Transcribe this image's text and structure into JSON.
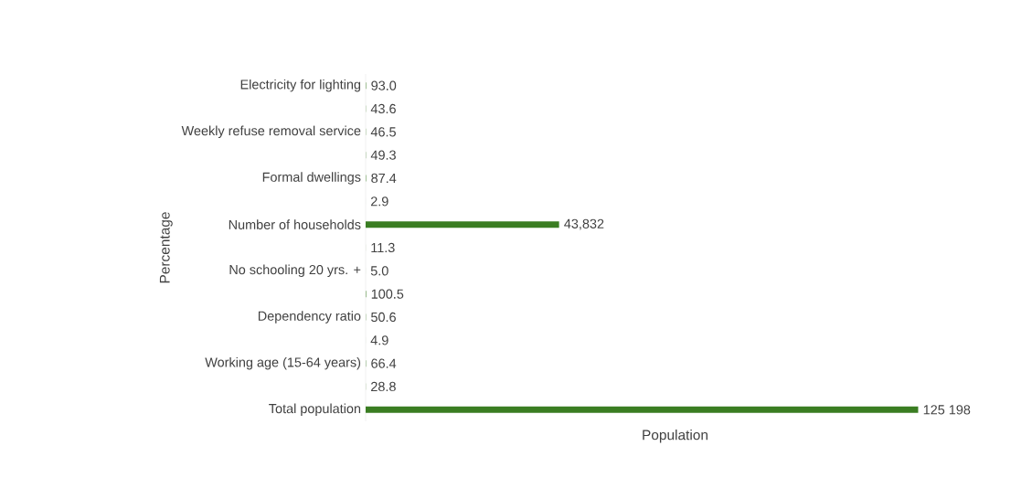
{
  "chart_data": {
    "type": "bar",
    "orientation": "horizontal",
    "xlabel": "Population",
    "ylabel": "Percentage",
    "categories": [
      "Electricity for lighting",
      null,
      "Weekly refuse removal service",
      null,
      "Formal dwellings",
      null,
      "Number of households",
      null,
      "No schooling 20 yrs. +",
      null,
      "Dependency ratio",
      null,
      "Working age (15-64 years)",
      null,
      "Total population"
    ],
    "values": [
      93.0,
      43.6,
      46.5,
      49.3,
      87.4,
      2.9,
      43832,
      11.3,
      5.0,
      100.5,
      50.6,
      4.9,
      66.4,
      28.8,
      125198
    ],
    "value_labels": [
      "93.0",
      "43.6",
      "46.5",
      "49.3",
      "87.4",
      "2.9",
      "43,832",
      "11.3",
      "5.0",
      "100.5",
      "50.6",
      "4.9",
      "66.4",
      "28.8",
      "125 198"
    ],
    "color": "#3a7d22"
  }
}
